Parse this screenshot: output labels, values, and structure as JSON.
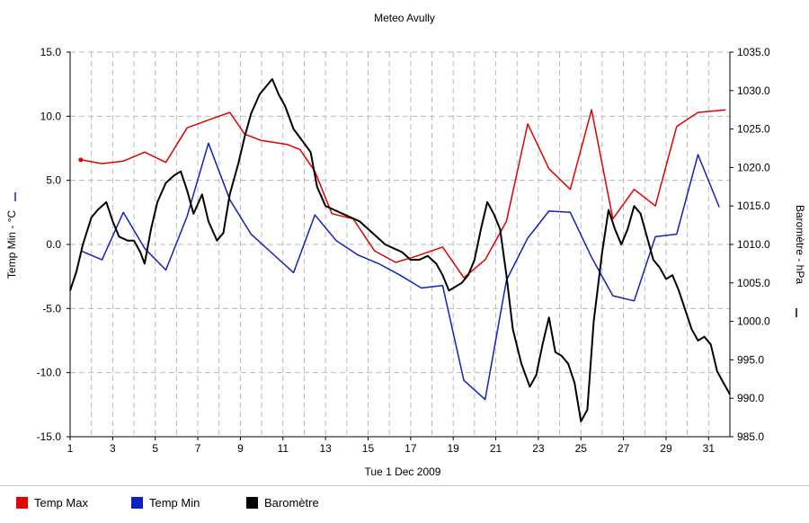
{
  "chart_data": {
    "type": "line",
    "title": "Meteo  Avully",
    "xlabel": "Tue 1 Dec 2009",
    "ylabel_left": "Temp Min - °C",
    "ylabel_right": "Baromètre - hPa",
    "x_range": [
      1,
      32
    ],
    "x_ticks": [
      "1",
      "3",
      "5",
      "7",
      "9",
      "11",
      "13",
      "15",
      "17",
      "19",
      "21",
      "23",
      "25",
      "27",
      "29",
      "31"
    ],
    "ylim_left": [
      -15.0,
      15.0
    ],
    "y_ticks_left": [
      "15.0",
      "10.0",
      "5.0",
      "0.0",
      "-5.0",
      "-10.0",
      "-15.0"
    ],
    "ylim_right": [
      985.0,
      1035.0
    ],
    "y_ticks_right": [
      "1035.0",
      "1030.0",
      "1025.0",
      "1020.0",
      "1015.0",
      "1010.0",
      "1005.0",
      "1000.0",
      "995.0",
      "990.0",
      "985.0"
    ],
    "grid": true,
    "legend_position": "bottom-left",
    "series": [
      {
        "name": "Temp Max",
        "color": "#e00000",
        "axis": "left",
        "x": [
          1.5,
          2.5,
          3.5,
          4.5,
          5.5,
          6.5,
          7.5,
          8.5,
          9.2,
          10.0,
          11.2,
          11.8,
          12.5,
          13.3,
          14.3,
          15.3,
          16.3,
          17.3,
          18.5,
          19.5,
          20.5,
          21.5,
          22.5,
          23.5,
          24.5,
          25.5,
          26.5,
          27.5,
          28.5,
          29.5,
          30.5,
          31.8
        ],
        "y": [
          6.6,
          6.3,
          6.5,
          7.2,
          6.4,
          9.1,
          9.7,
          10.3,
          8.6,
          8.1,
          7.8,
          7.4,
          5.7,
          2.4,
          2.0,
          -0.5,
          -1.4,
          -0.9,
          -0.2,
          -2.6,
          -1.2,
          1.8,
          9.4,
          5.9,
          4.3,
          10.5,
          2.0,
          4.3,
          3.0,
          9.2,
          10.3,
          10.5
        ]
      },
      {
        "name": "Temp Min",
        "color": "#1020c0",
        "axis": "left",
        "x": [
          1.5,
          2.5,
          3.5,
          4.5,
          5.5,
          6.5,
          7.5,
          8.5,
          9.5,
          10.5,
          11.5,
          12.5,
          13.5,
          14.5,
          15.5,
          16.5,
          17.5,
          18.5,
          19.5,
          20.5,
          21.5,
          22.5,
          23.5,
          24.5,
          25.5,
          26.5,
          27.5,
          28.5,
          29.5,
          30.5,
          31.5
        ],
        "y": [
          -0.5,
          -1.2,
          2.5,
          -0.3,
          -2.0,
          2.2,
          7.9,
          3.5,
          0.8,
          -0.7,
          -2.2,
          2.3,
          0.3,
          -0.8,
          -1.5,
          -2.4,
          -3.4,
          -3.2,
          -10.6,
          -12.1,
          -2.8,
          0.5,
          2.6,
          2.5,
          -1.0,
          -4.0,
          -4.4,
          0.6,
          0.8,
          7.0,
          2.9
        ]
      },
      {
        "name": "Baromètre",
        "color": "#000000",
        "axis": "right",
        "x": [
          1.0,
          1.3,
          1.6,
          2.0,
          2.3,
          2.7,
          3.0,
          3.3,
          3.7,
          4.0,
          4.3,
          4.5,
          4.8,
          5.1,
          5.5,
          5.9,
          6.2,
          6.5,
          6.8,
          7.2,
          7.5,
          7.9,
          8.2,
          8.5,
          8.9,
          9.2,
          9.5,
          9.9,
          10.2,
          10.5,
          10.8,
          11.1,
          11.5,
          11.9,
          12.3,
          12.6,
          13.0,
          13.4,
          13.8,
          14.2,
          14.6,
          15.0,
          15.4,
          15.8,
          16.2,
          16.6,
          17.0,
          17.4,
          17.8,
          18.2,
          18.5,
          18.8,
          19.1,
          19.4,
          19.7,
          20.0,
          20.3,
          20.6,
          20.9,
          21.2,
          21.5,
          21.8,
          22.2,
          22.6,
          22.9,
          23.2,
          23.5,
          23.8,
          24.1,
          24.4,
          24.7,
          25.0,
          25.3,
          25.6,
          26.0,
          26.3,
          26.6,
          26.9,
          27.2,
          27.5,
          27.8,
          28.1,
          28.4,
          28.7,
          29.0,
          29.3,
          29.6,
          29.9,
          30.2,
          30.5,
          30.8,
          31.1,
          31.4,
          31.7,
          32.0
        ],
        "y": [
          1004.0,
          1006.5,
          1010.0,
          1013.5,
          1014.5,
          1015.5,
          1013.0,
          1011.0,
          1010.5,
          1010.5,
          1009.0,
          1007.5,
          1012.0,
          1015.5,
          1018.0,
          1019.0,
          1019.5,
          1017.0,
          1014.0,
          1016.5,
          1013.0,
          1010.5,
          1011.5,
          1016.5,
          1020.5,
          1024.0,
          1027.0,
          1029.5,
          1030.5,
          1031.5,
          1029.5,
          1028.0,
          1025.0,
          1023.5,
          1022.0,
          1017.5,
          1015.0,
          1014.5,
          1014.0,
          1013.5,
          1013.0,
          1012.0,
          1011.0,
          1010.0,
          1009.5,
          1009.0,
          1008.0,
          1008.0,
          1008.5,
          1007.5,
          1006.0,
          1004.0,
          1004.5,
          1005.0,
          1006.0,
          1008.0,
          1012.0,
          1015.5,
          1014.0,
          1012.0,
          1006.0,
          999.0,
          994.5,
          991.5,
          993.0,
          997.0,
          1000.5,
          996.0,
          995.5,
          994.5,
          992.0,
          987.0,
          988.5,
          1000.0,
          1009.0,
          1014.5,
          1012.0,
          1010.0,
          1012.0,
          1015.0,
          1014.0,
          1011.0,
          1008.0,
          1007.0,
          1005.5,
          1006.0,
          1004.0,
          1001.5,
          999.0,
          997.5,
          998.0,
          997.0,
          993.5,
          992.0,
          990.5
        ]
      }
    ]
  }
}
